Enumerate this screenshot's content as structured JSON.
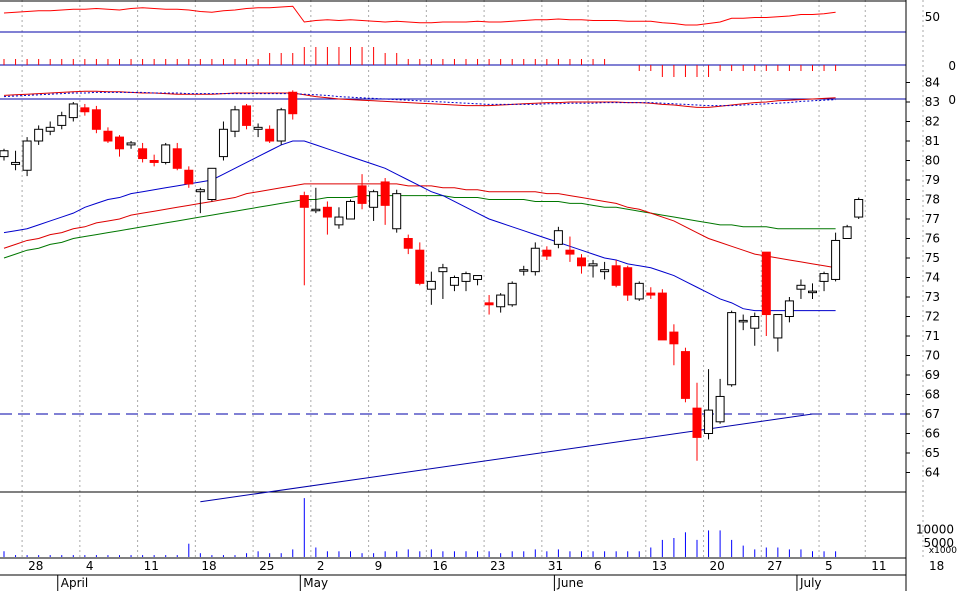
{
  "chart_data": {
    "type": "candlestick",
    "dates": [
      "03-26",
      "03-27",
      "03-28",
      "03-29",
      "03-30",
      "04-02",
      "04-03",
      "04-04",
      "04-05",
      "04-06",
      "04-09",
      "04-10",
      "04-11",
      "04-12",
      "04-13",
      "04-16",
      "04-17",
      "04-18",
      "04-19",
      "04-20",
      "04-23",
      "04-24",
      "04-25",
      "04-26",
      "04-27",
      "04-30",
      "05-01",
      "05-02",
      "05-03",
      "05-04",
      "05-07",
      "05-08",
      "05-09",
      "05-10",
      "05-11",
      "05-14",
      "05-15",
      "05-16",
      "05-17",
      "05-18",
      "05-21",
      "05-22",
      "05-23",
      "05-24",
      "05-25",
      "05-29",
      "05-30",
      "05-31",
      "06-01",
      "06-04",
      "06-05",
      "06-06",
      "06-07",
      "06-08",
      "06-11",
      "06-12",
      "06-13",
      "06-14",
      "06-15",
      "06-18",
      "06-19",
      "06-20",
      "06-21",
      "06-22",
      "06-25",
      "06-26",
      "06-27",
      "06-28",
      "06-29",
      "07-02",
      "07-03",
      "07-05",
      "07-06"
    ],
    "ohlc": [
      [
        80.2,
        80.6,
        80.0,
        80.5
      ],
      [
        79.8,
        80.5,
        79.5,
        79.9
      ],
      [
        79.5,
        81.2,
        79.2,
        81.0
      ],
      [
        81.0,
        81.8,
        80.8,
        81.6
      ],
      [
        81.5,
        82.0,
        81.3,
        81.7
      ],
      [
        81.8,
        82.5,
        81.6,
        82.3
      ],
      [
        82.2,
        83.0,
        82.0,
        82.9
      ],
      [
        82.7,
        82.9,
        82.3,
        82.5
      ],
      [
        82.6,
        82.8,
        81.4,
        81.6
      ],
      [
        81.5,
        81.7,
        80.9,
        81.0
      ],
      [
        81.2,
        81.3,
        80.2,
        80.6
      ],
      [
        80.8,
        81.0,
        80.6,
        80.9
      ],
      [
        80.6,
        80.9,
        79.9,
        80.1
      ],
      [
        80.0,
        80.3,
        79.7,
        79.9
      ],
      [
        79.9,
        80.9,
        79.8,
        80.8
      ],
      [
        80.6,
        80.9,
        79.5,
        79.6
      ],
      [
        79.5,
        79.7,
        78.6,
        78.8
      ],
      [
        78.4,
        78.6,
        77.3,
        78.5
      ],
      [
        78.0,
        79.6,
        77.9,
        79.6
      ],
      [
        80.2,
        82.0,
        80.0,
        81.6
      ],
      [
        81.5,
        82.8,
        81.2,
        82.6
      ],
      [
        82.8,
        82.9,
        81.6,
        81.8
      ],
      [
        81.6,
        81.9,
        81.2,
        81.7
      ],
      [
        81.6,
        81.8,
        80.9,
        81.0
      ],
      [
        81.0,
        82.7,
        80.8,
        82.6
      ],
      [
        83.5,
        83.6,
        82.1,
        82.4
      ],
      [
        78.2,
        78.4,
        73.6,
        77.6
      ],
      [
        77.5,
        78.6,
        77.3,
        77.5
      ],
      [
        77.6,
        77.9,
        76.2,
        77.1
      ],
      [
        76.7,
        77.6,
        76.5,
        77.1
      ],
      [
        77.0,
        78.0,
        77.0,
        77.9
      ],
      [
        78.7,
        79.3,
        77.5,
        77.8
      ],
      [
        77.6,
        78.5,
        76.9,
        78.4
      ],
      [
        78.9,
        79.1,
        76.7,
        77.7
      ],
      [
        76.5,
        78.5,
        76.3,
        78.3
      ],
      [
        76.0,
        76.2,
        75.2,
        75.5
      ],
      [
        75.4,
        75.8,
        73.6,
        73.7
      ],
      [
        73.4,
        74.3,
        72.6,
        73.8
      ],
      [
        74.3,
        74.7,
        72.9,
        74.5
      ],
      [
        73.6,
        74.1,
        73.3,
        74.0
      ],
      [
        73.8,
        74.3,
        73.3,
        74.2
      ],
      [
        73.9,
        74.1,
        73.6,
        74.1
      ],
      [
        72.7,
        73.1,
        72.1,
        72.6
      ],
      [
        72.5,
        73.2,
        72.2,
        73.1
      ],
      [
        72.6,
        73.8,
        72.5,
        73.7
      ],
      [
        74.4,
        74.6,
        74.1,
        74.4
      ],
      [
        74.3,
        75.8,
        74.1,
        75.5
      ],
      [
        75.4,
        75.6,
        74.9,
        75.1
      ],
      [
        75.7,
        76.6,
        75.5,
        76.4
      ],
      [
        75.4,
        76.1,
        74.8,
        75.2
      ],
      [
        75.0,
        75.2,
        74.2,
        74.6
      ],
      [
        74.6,
        74.9,
        74.0,
        74.7
      ],
      [
        74.3,
        74.8,
        73.9,
        74.4
      ],
      [
        74.6,
        74.9,
        73.5,
        73.6
      ],
      [
        74.5,
        74.6,
        72.8,
        73.1
      ],
      [
        72.9,
        73.8,
        72.8,
        73.7
      ],
      [
        73.2,
        73.5,
        72.9,
        73.1
      ],
      [
        73.2,
        73.4,
        70.8,
        70.8
      ],
      [
        71.2,
        71.6,
        69.5,
        70.6
      ],
      [
        70.2,
        70.4,
        67.6,
        67.8
      ],
      [
        67.3,
        68.6,
        64.6,
        65.8
      ],
      [
        66.0,
        69.3,
        65.7,
        67.2
      ],
      [
        66.6,
        68.8,
        66.5,
        67.9
      ],
      [
        68.5,
        72.3,
        68.4,
        72.2
      ],
      [
        71.8,
        72.1,
        71.3,
        71.8
      ],
      [
        71.4,
        72.2,
        70.5,
        72.0
      ],
      [
        75.3,
        75.3,
        71.0,
        72.1
      ],
      [
        70.9,
        72.1,
        70.2,
        72.1
      ],
      [
        72.0,
        73.0,
        71.7,
        72.8
      ],
      [
        73.4,
        73.9,
        72.9,
        73.6
      ],
      [
        73.3,
        73.7,
        72.9,
        73.3
      ],
      [
        73.8,
        74.3,
        73.3,
        74.2
      ],
      [
        73.9,
        76.3,
        73.8,
        75.9
      ]
    ],
    "extra_bars": [
      [
        76.0,
        76.7,
        76.0,
        76.6
      ],
      [
        77.1,
        78.1,
        77.0,
        78.0
      ]
    ],
    "volume": [
      3,
      1,
      1,
      1,
      1,
      1,
      1,
      1,
      1,
      1,
      1,
      1,
      1,
      1,
      1,
      1,
      7,
      2,
      1,
      1,
      1,
      2,
      3,
      2,
      2,
      4,
      31,
      5,
      3,
      3,
      3,
      2,
      2,
      3,
      3,
      4,
      3,
      4,
      3,
      3,
      3,
      3,
      3,
      2,
      3,
      3,
      4,
      3,
      4,
      3,
      3,
      3,
      3,
      3,
      3,
      3,
      5,
      9,
      10,
      13,
      9,
      14,
      14,
      9,
      6,
      4,
      5,
      5,
      4,
      4,
      3,
      3,
      3
    ],
    "ma_short": [
      76.3,
      76.4,
      76.5,
      76.7,
      76.9,
      77.1,
      77.3,
      77.6,
      77.8,
      78.0,
      78.1,
      78.3,
      78.4,
      78.5,
      78.6,
      78.7,
      78.8,
      78.9,
      79.0,
      79.3,
      79.6,
      79.9,
      80.2,
      80.5,
      80.8,
      81.0,
      81.0,
      80.8,
      80.6,
      80.4,
      80.2,
      80.0,
      79.8,
      79.6,
      79.3,
      79.0,
      78.7,
      78.4,
      78.2,
      77.9,
      77.6,
      77.3,
      77.0,
      76.8,
      76.6,
      76.4,
      76.2,
      76.0,
      75.8,
      75.6,
      75.4,
      75.2,
      75.0,
      74.9,
      74.7,
      74.6,
      74.5,
      74.3,
      74.1,
      73.8,
      73.5,
      73.2,
      72.9,
      72.7,
      72.4,
      72.3,
      72.3,
      72.3,
      72.3,
      72.3,
      72.3,
      72.3,
      72.3
    ],
    "ma_mid": [
      75.5,
      75.7,
      75.9,
      76.0,
      76.2,
      76.3,
      76.5,
      76.6,
      76.8,
      76.9,
      77.0,
      77.2,
      77.3,
      77.4,
      77.5,
      77.6,
      77.7,
      77.8,
      77.9,
      78.0,
      78.1,
      78.3,
      78.4,
      78.5,
      78.6,
      78.7,
      78.8,
      78.8,
      78.8,
      78.8,
      78.8,
      78.8,
      78.8,
      78.8,
      78.8,
      78.7,
      78.7,
      78.7,
      78.6,
      78.6,
      78.5,
      78.5,
      78.4,
      78.4,
      78.4,
      78.4,
      78.4,
      78.3,
      78.3,
      78.2,
      78.1,
      78.0,
      77.9,
      77.8,
      77.6,
      77.5,
      77.3,
      77.1,
      76.9,
      76.6,
      76.3,
      76.0,
      75.8,
      75.6,
      75.4,
      75.2,
      75.1,
      75.0,
      74.9,
      74.8,
      74.7,
      74.6,
      74.5
    ],
    "ma_long": [
      75.0,
      75.2,
      75.4,
      75.5,
      75.7,
      75.8,
      76.0,
      76.1,
      76.2,
      76.3,
      76.4,
      76.5,
      76.6,
      76.7,
      76.8,
      76.9,
      77.0,
      77.1,
      77.2,
      77.3,
      77.4,
      77.5,
      77.6,
      77.7,
      77.8,
      77.9,
      78.0,
      78.0,
      78.1,
      78.1,
      78.1,
      78.2,
      78.2,
      78.2,
      78.2,
      78.2,
      78.2,
      78.2,
      78.2,
      78.1,
      78.1,
      78.1,
      78.0,
      78.0,
      78.0,
      78.0,
      77.9,
      77.9,
      77.9,
      77.8,
      77.8,
      77.7,
      77.6,
      77.6,
      77.5,
      77.4,
      77.3,
      77.2,
      77.1,
      77.0,
      76.9,
      76.8,
      76.7,
      76.7,
      76.6,
      76.6,
      76.6,
      76.5,
      76.5,
      76.5,
      76.5,
      76.5,
      76.5
    ],
    "horizontal_line": 67.0,
    "trendline": [
      {
        "x": "04-18",
        "y": 62.5
      },
      {
        "x": "07-03",
        "y": 67.0
      }
    ],
    "rsi": [
      54,
      55,
      56,
      57,
      57,
      58,
      59,
      59,
      60,
      59,
      58,
      60,
      61,
      60,
      59,
      59,
      58,
      56,
      55,
      57,
      58,
      60,
      61,
      61,
      62,
      63,
      42,
      44,
      45,
      44,
      45,
      44,
      43,
      42,
      43,
      42,
      41,
      41,
      42,
      42,
      42,
      43,
      42,
      42,
      43,
      44,
      45,
      45,
      46,
      45,
      45,
      44,
      44,
      44,
      43,
      43,
      43,
      41,
      40,
      38,
      38,
      40,
      42,
      47,
      47,
      48,
      48,
      49,
      50,
      52,
      52,
      53,
      55
    ],
    "momentum": [
      1,
      1,
      1,
      1,
      1,
      1,
      1,
      1,
      1,
      1,
      1,
      1,
      1,
      1,
      1,
      1,
      1,
      1,
      1,
      1,
      1,
      1,
      1,
      2,
      2,
      2,
      3,
      3,
      3,
      3,
      3,
      3,
      3,
      2,
      2,
      1,
      1,
      1,
      1,
      1,
      1,
      1,
      1,
      1,
      1,
      1,
      1,
      1,
      1,
      1,
      1,
      1,
      1,
      0,
      0,
      -1,
      -1,
      -2,
      -2,
      -2,
      -2,
      -2,
      -1,
      -1,
      -1,
      -1,
      -1,
      -1,
      -1,
      -1,
      -1,
      -1,
      -1
    ],
    "macd": [
      0.6,
      0.7,
      0.8,
      0.9,
      1.0,
      1.1,
      1.2,
      1.3,
      1.3,
      1.2,
      1.2,
      1.1,
      1.0,
      1.0,
      0.9,
      0.8,
      0.8,
      0.8,
      0.8,
      0.9,
      1.0,
      1.0,
      1.0,
      1.0,
      1.0,
      1.0,
      0.7,
      0.4,
      0.2,
      0.0,
      -0.1,
      -0.2,
      -0.3,
      -0.4,
      -0.5,
      -0.6,
      -0.7,
      -0.8,
      -0.9,
      -1.0,
      -1.1,
      -1.1,
      -1.1,
      -1.0,
      -0.9,
      -0.8,
      -0.7,
      -0.6,
      -0.6,
      -0.5,
      -0.5,
      -0.5,
      -0.5,
      -0.5,
      -0.6,
      -0.6,
      -0.7,
      -0.9,
      -1.0,
      -1.2,
      -1.4,
      -1.4,
      -1.2,
      -1.0,
      -0.8,
      -0.6,
      -0.5,
      -0.3,
      -0.2,
      -0.1,
      0.0,
      0.1,
      0.2
    ],
    "macd_signal": [
      0.4,
      0.5,
      0.6,
      0.7,
      0.8,
      0.9,
      1.0,
      1.0,
      1.1,
      1.1,
      1.1,
      1.1,
      1.1,
      1.0,
      1.0,
      1.0,
      0.9,
      0.9,
      0.9,
      0.9,
      0.9,
      0.9,
      0.9,
      0.9,
      0.9,
      0.9,
      0.8,
      0.7,
      0.6,
      0.4,
      0.3,
      0.2,
      0.1,
      0.0,
      -0.1,
      -0.2,
      -0.3,
      -0.4,
      -0.5,
      -0.6,
      -0.7,
      -0.8,
      -0.9,
      -0.9,
      -0.9,
      -0.9,
      -0.9,
      -0.8,
      -0.8,
      -0.7,
      -0.7,
      -0.7,
      -0.6,
      -0.6,
      -0.6,
      -0.6,
      -0.6,
      -0.7,
      -0.8,
      -0.9,
      -1.0,
      -1.1,
      -1.1,
      -1.1,
      -1.0,
      -0.9,
      -0.8,
      -0.7,
      -0.6,
      -0.4,
      -0.3,
      -0.2,
      -0.1
    ],
    "price_axis_ticks": [
      "64",
      "65",
      "66",
      "67",
      "68",
      "69",
      "70",
      "71",
      "72",
      "73",
      "74",
      "75",
      "76",
      "77",
      "78",
      "79",
      "80",
      "81",
      "82",
      "83",
      "84"
    ],
    "volume_axis_ticks": [
      "5000",
      "10000"
    ],
    "volume_unit": "x1000",
    "rsi_axis_tick": "50",
    "momentum_axis_tick": "0",
    "macd_axis_tick": "0",
    "day_labels": [
      {
        "date": "03-28",
        "text": "28"
      },
      {
        "date": "04-04",
        "text": "4"
      },
      {
        "date": "04-11",
        "text": "11"
      },
      {
        "date": "04-18",
        "text": "18"
      },
      {
        "date": "04-25",
        "text": "25"
      },
      {
        "date": "05-02",
        "text": "2"
      },
      {
        "date": "05-09",
        "text": "9"
      },
      {
        "date": "05-16",
        "text": "16"
      },
      {
        "date": "05-23",
        "text": "23"
      },
      {
        "date": "05-31",
        "text": "31"
      },
      {
        "date": "06-06",
        "text": "6"
      },
      {
        "date": "06-13",
        "text": "13"
      },
      {
        "date": "06-20",
        "text": "20"
      },
      {
        "date": "06-27",
        "text": "27"
      },
      {
        "date": "07-05",
        "text": "5"
      },
      {
        "date": "07-11",
        "text": "11"
      },
      {
        "date": "07-18",
        "text": "18"
      }
    ],
    "month_labels": [
      {
        "date": "04-02",
        "text": "April"
      },
      {
        "date": "05-01",
        "text": "May"
      },
      {
        "date": "06-01",
        "text": "June"
      },
      {
        "date": "07-02",
        "text": "July"
      }
    ],
    "colors": {
      "bear_candle": "#ff0000",
      "bull_candle": "#ffffff",
      "ma_short": "#0000cc",
      "ma_mid": "#dd0000",
      "ma_long": "#007700",
      "reference_line": "#0000aa",
      "volume": "#0000ff",
      "momentum": "#ff0000",
      "grid": "#aaaaaa"
    }
  }
}
